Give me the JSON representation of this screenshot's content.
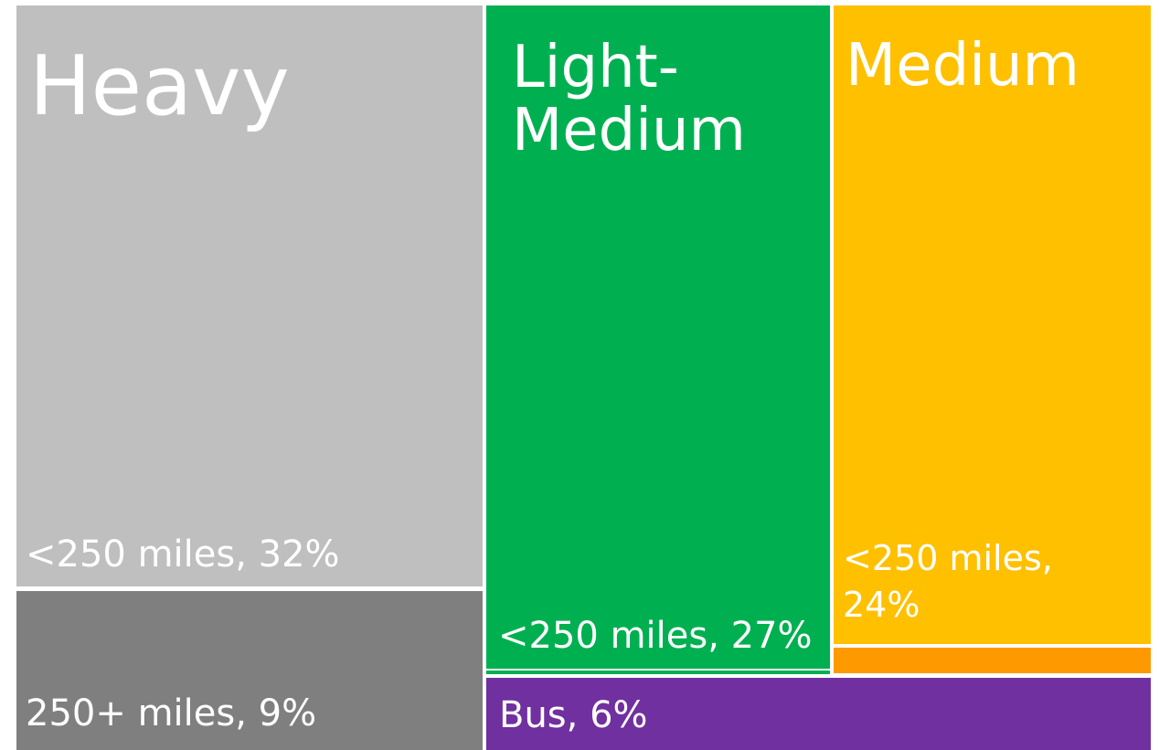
{
  "chart_data": {
    "type": "treemap",
    "title": "",
    "groups": [
      {
        "id": "heavy",
        "name": "Heavy",
        "color": "#bfbfbf",
        "segments": [
          {
            "id": "heavy_short",
            "label": "<250 miles, 32%",
            "value": 32,
            "color": "#bfbfbf"
          },
          {
            "id": "heavy_long",
            "label": "250+ miles, 9%",
            "value": 9,
            "color": "#7f7f7f"
          }
        ]
      },
      {
        "id": "light_medium",
        "name": "Light-\nMedium",
        "color": "#00b050",
        "segments": [
          {
            "id": "light_medium_short",
            "label": "<250 miles, 27%",
            "value": 27,
            "color": "#00b050"
          }
        ]
      },
      {
        "id": "medium",
        "name": "Medium",
        "color": "#ffc000",
        "segments": [
          {
            "id": "medium_short",
            "label": "<250 miles,\n24%",
            "value": 24,
            "color": "#ffc000"
          }
        ]
      },
      {
        "id": "bus",
        "name": "",
        "color": "#7030a0",
        "segments": [
          {
            "id": "bus",
            "label": "Bus, 6%",
            "value": 6,
            "color": "#7030a0"
          }
        ]
      }
    ]
  }
}
